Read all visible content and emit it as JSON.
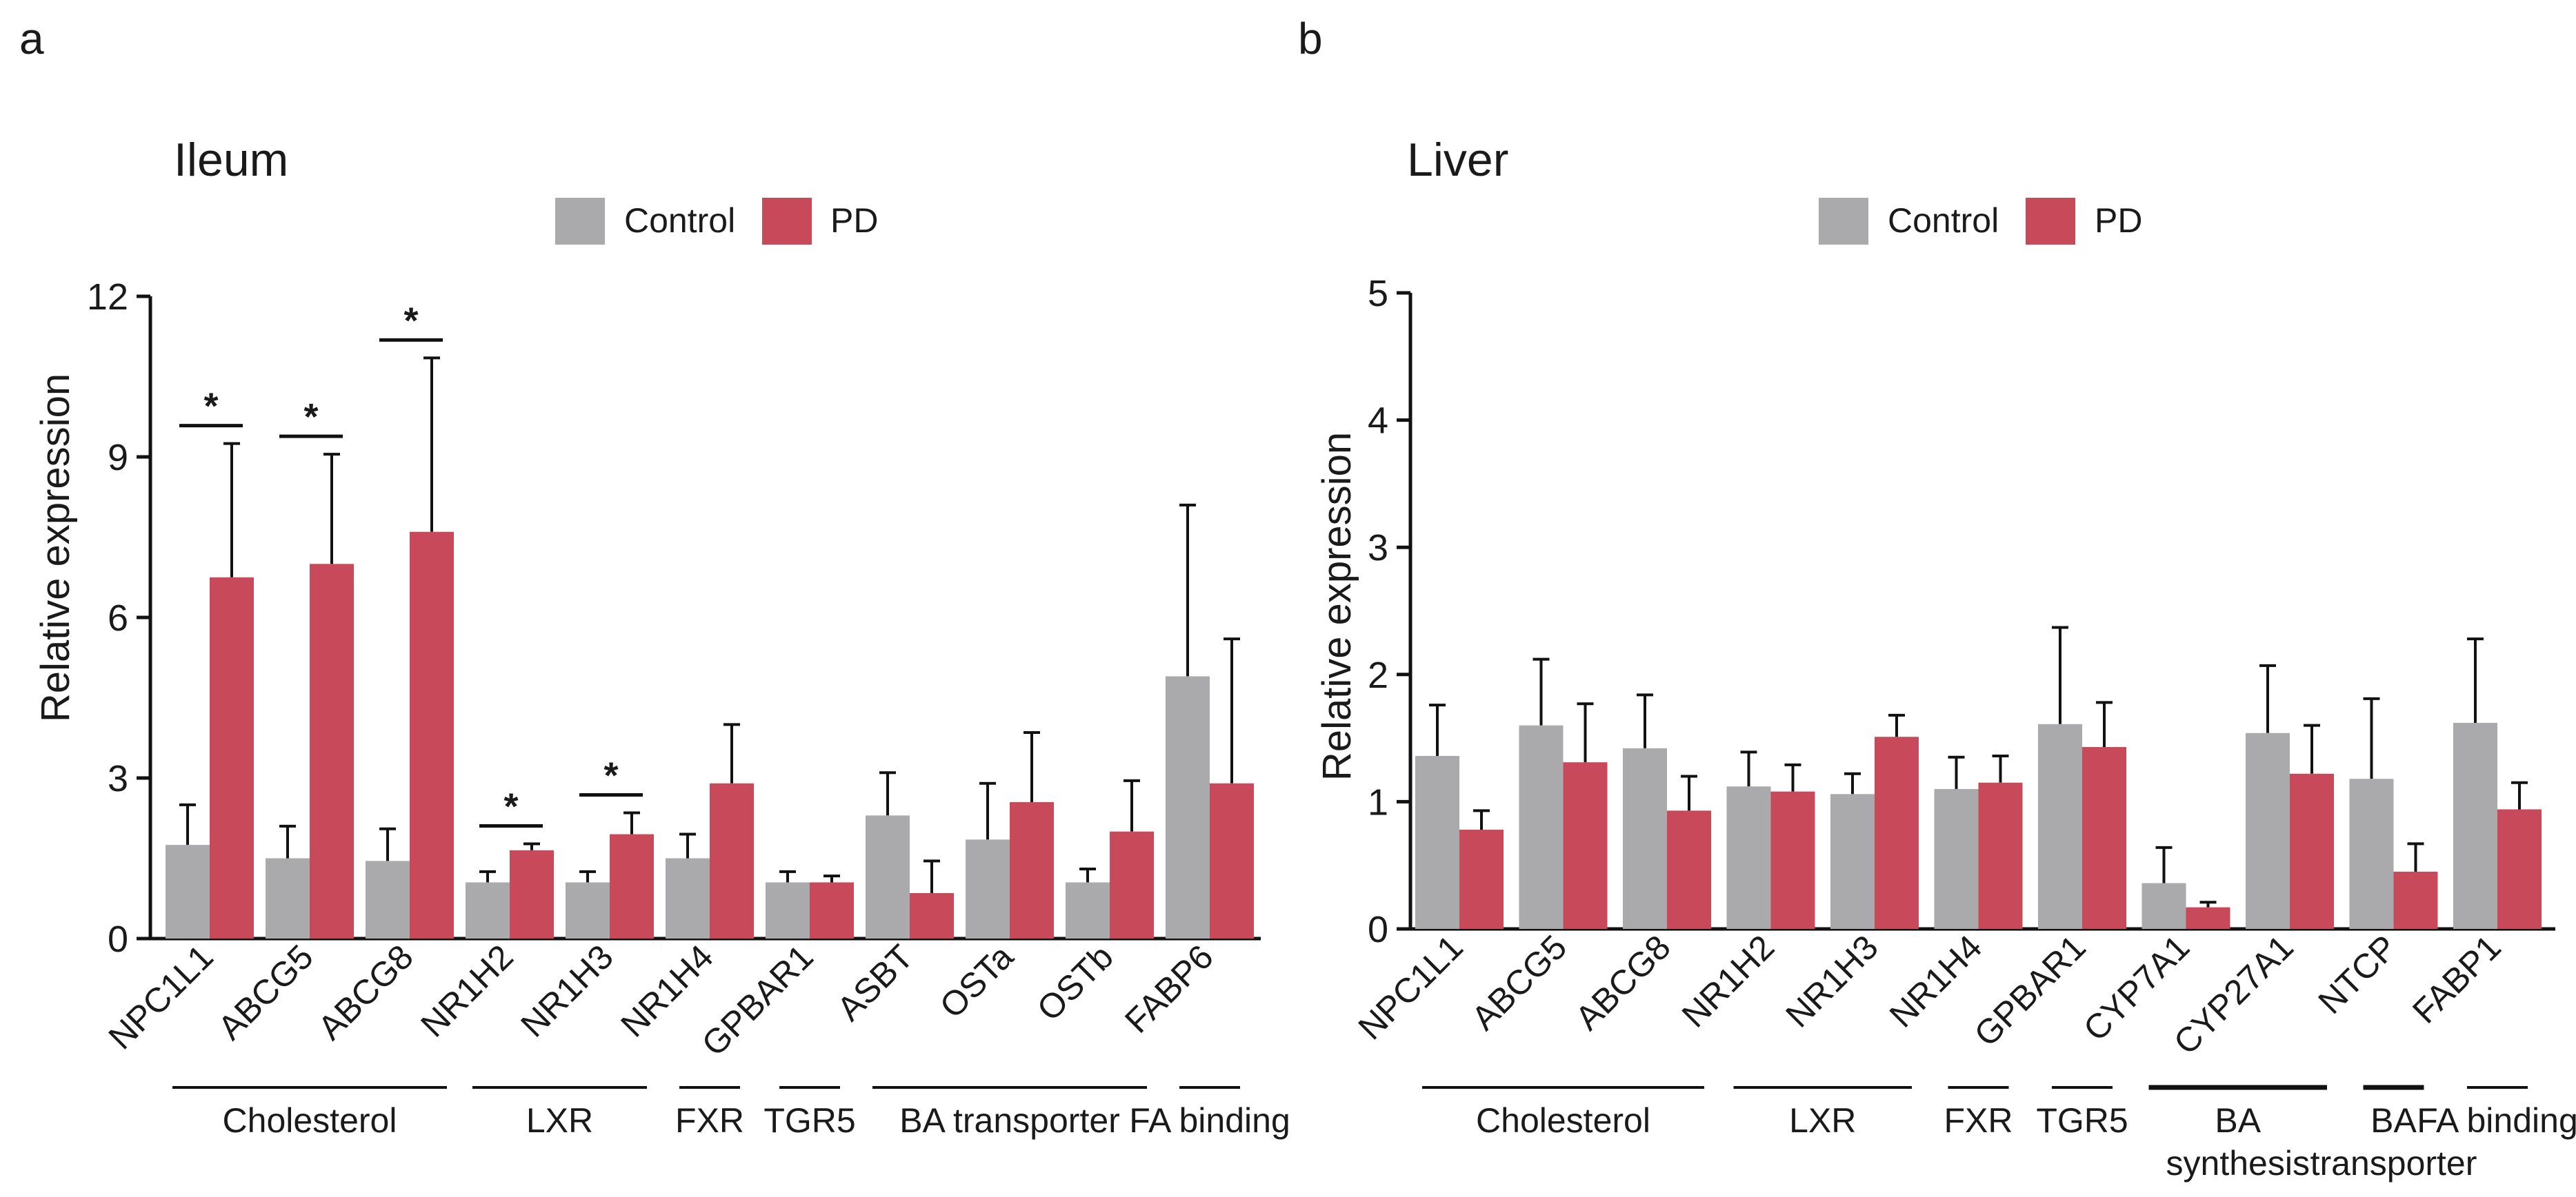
{
  "figure": {
    "panels": [
      "a",
      "b"
    ],
    "legend": {
      "control_label": "Control",
      "pd_label": "PD"
    },
    "colors": {
      "control": "#aaaaac",
      "pd": "#c84a5a",
      "axis": "#111111"
    }
  },
  "chart_data": [
    {
      "type": "bar",
      "panel": "a",
      "title": "Ileum",
      "ylabel": "Relative expression",
      "xlabel": "",
      "ylim": [
        0,
        12
      ],
      "yticks": [
        0,
        3,
        6,
        9,
        12
      ],
      "categories": [
        "NPC1L1",
        "ABCG5",
        "ABCG8",
        "NR1H2",
        "NR1H3",
        "NR1H4",
        "GPBAR1",
        "ASBT",
        "OSTa",
        "OSTb",
        "FABP6"
      ],
      "series": [
        {
          "name": "Control",
          "values": [
            1.75,
            1.5,
            1.45,
            1.05,
            1.05,
            1.5,
            1.05,
            2.3,
            1.85,
            1.05,
            4.9
          ],
          "errors": [
            0.75,
            0.6,
            0.6,
            0.2,
            0.2,
            0.45,
            0.2,
            0.8,
            1.05,
            0.25,
            3.2
          ]
        },
        {
          "name": "PD",
          "values": [
            6.75,
            7.0,
            7.6,
            1.65,
            1.95,
            2.9,
            1.05,
            0.85,
            2.55,
            2.0,
            2.9
          ],
          "errors": [
            2.5,
            2.05,
            3.25,
            0.12,
            0.4,
            1.1,
            0.12,
            0.6,
            1.3,
            0.95,
            2.7
          ]
        }
      ],
      "significance": [
        {
          "category": "NPC1L1",
          "label": "*"
        },
        {
          "category": "ABCG5",
          "label": "*"
        },
        {
          "category": "ABCG8",
          "label": "*"
        },
        {
          "category": "NR1H2",
          "label": "*"
        },
        {
          "category": "NR1H3",
          "label": "*"
        }
      ],
      "groups": [
        {
          "label": "Cholesterol",
          "from": 0,
          "to": 2
        },
        {
          "label": "LXR",
          "from": 3,
          "to": 4
        },
        {
          "label": "FXR",
          "from": 5,
          "to": 5
        },
        {
          "label": "TGR5",
          "from": 6,
          "to": 6
        },
        {
          "label": "BA transporter",
          "from": 7,
          "to": 9
        },
        {
          "label": "FA binding",
          "from": 10,
          "to": 10
        }
      ]
    },
    {
      "type": "bar",
      "panel": "b",
      "title": "Liver",
      "ylabel": "Relative expression",
      "xlabel": "",
      "ylim": [
        0,
        5
      ],
      "yticks": [
        0,
        1,
        2,
        3,
        4,
        5
      ],
      "categories": [
        "NPC1L1",
        "ABCG5",
        "ABCG8",
        "NR1H2",
        "NR1H3",
        "NR1H4",
        "GPBAR1",
        "CYP7A1",
        "CYP27A1",
        "NTCP",
        "FABP1"
      ],
      "series": [
        {
          "name": "Control",
          "values": [
            1.36,
            1.6,
            1.42,
            1.12,
            1.06,
            1.1,
            1.61,
            0.36,
            1.54,
            1.18,
            1.62
          ],
          "errors": [
            0.4,
            0.52,
            0.42,
            0.27,
            0.16,
            0.25,
            0.76,
            0.28,
            0.53,
            0.63,
            0.66
          ]
        },
        {
          "name": "PD",
          "values": [
            0.78,
            1.31,
            0.93,
            1.08,
            1.51,
            1.15,
            1.43,
            0.17,
            1.22,
            0.45,
            0.94
          ],
          "errors": [
            0.15,
            0.46,
            0.27,
            0.21,
            0.17,
            0.21,
            0.35,
            0.04,
            0.38,
            0.22,
            0.21
          ]
        }
      ],
      "significance": [],
      "groups": [
        {
          "label": "Cholesterol",
          "from": 0,
          "to": 2
        },
        {
          "label": "LXR",
          "from": 3,
          "to": 4
        },
        {
          "label": "FXR",
          "from": 5,
          "to": 5
        },
        {
          "label": "TGR5",
          "from": 6,
          "to": 6
        },
        {
          "label": "BA synthesis",
          "lines": [
            "BA",
            "synthesis"
          ],
          "from": 7,
          "to": 8
        },
        {
          "label": "BA transporter",
          "lines": [
            "BA",
            "transporter"
          ],
          "from": 9,
          "to": 9
        },
        {
          "label": "FA binding",
          "from": 10,
          "to": 10
        }
      ]
    }
  ]
}
